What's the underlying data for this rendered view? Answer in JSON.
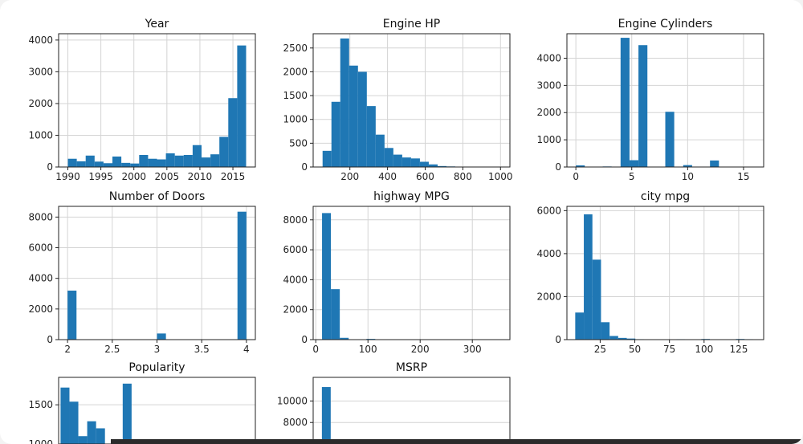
{
  "chart_data": [
    {
      "type": "bar",
      "title": "Year",
      "xlim": [
        1988.6,
        2018.4
      ],
      "ylim": [
        0,
        4200
      ],
      "xticks": [
        1990,
        1995,
        2000,
        2005,
        2010,
        2015
      ],
      "yticks": [
        0,
        1000,
        2000,
        3000,
        4000
      ],
      "bins": [
        [
          1990,
          1991.35,
          260
        ],
        [
          1991.35,
          1992.7,
          180
        ],
        [
          1992.7,
          1994.05,
          360
        ],
        [
          1994.05,
          1995.4,
          170
        ],
        [
          1995.4,
          1996.75,
          120
        ],
        [
          1996.75,
          1998.1,
          330
        ],
        [
          1998.1,
          1999.45,
          130
        ],
        [
          1999.45,
          2000.8,
          110
        ],
        [
          2000.8,
          2002.15,
          380
        ],
        [
          2002.15,
          2003.5,
          260
        ],
        [
          2003.5,
          2004.85,
          240
        ],
        [
          2004.85,
          2006.2,
          430
        ],
        [
          2006.2,
          2007.55,
          360
        ],
        [
          2007.55,
          2008.9,
          380
        ],
        [
          2008.9,
          2010.25,
          690
        ],
        [
          2010.25,
          2011.6,
          300
        ],
        [
          2011.6,
          2012.95,
          400
        ],
        [
          2012.95,
          2014.3,
          950
        ],
        [
          2014.3,
          2015.65,
          2170
        ],
        [
          2015.65,
          2017,
          3830
        ]
      ]
    },
    {
      "type": "bar",
      "title": "Engine HP",
      "xlim": [
        5,
        1050
      ],
      "ylim": [
        0,
        2800
      ],
      "xticks": [
        200,
        400,
        600,
        800,
        1000
      ],
      "yticks": [
        0,
        500,
        1000,
        1500,
        2000,
        2500
      ],
      "bins": [
        [
          55,
          102,
          340
        ],
        [
          102,
          149,
          1370
        ],
        [
          149,
          196,
          2700
        ],
        [
          196,
          243,
          2130
        ],
        [
          243,
          290,
          2000
        ],
        [
          290,
          337,
          1280
        ],
        [
          337,
          384,
          680
        ],
        [
          384,
          431,
          400
        ],
        [
          431,
          478,
          260
        ],
        [
          478,
          525,
          200
        ],
        [
          525,
          572,
          180
        ],
        [
          572,
          619,
          110
        ],
        [
          619,
          666,
          55
        ],
        [
          666,
          713,
          20
        ],
        [
          713,
          760,
          12
        ],
        [
          760,
          807,
          8
        ],
        [
          807,
          854,
          5
        ],
        [
          854,
          901,
          4
        ],
        [
          901,
          948,
          3
        ],
        [
          948,
          1001,
          2
        ]
      ]
    },
    {
      "type": "bar",
      "title": "Engine Cylinders",
      "xlim": [
        -0.8,
        16.8
      ],
      "ylim": [
        0,
        4900
      ],
      "xticks": [
        0,
        5,
        10,
        15
      ],
      "yticks": [
        0,
        1000,
        2000,
        3000,
        4000
      ],
      "bins": [
        [
          0,
          0.8,
          60
        ],
        [
          2.4,
          3.2,
          20
        ],
        [
          4,
          4.8,
          4750
        ],
        [
          4.8,
          5.6,
          250
        ],
        [
          5.6,
          6.4,
          4480
        ],
        [
          8,
          8.8,
          2030
        ],
        [
          9.6,
          10.4,
          70
        ],
        [
          12,
          12.8,
          240
        ],
        [
          15.2,
          16,
          5
        ]
      ]
    },
    {
      "type": "bar",
      "title": "Number of Doors",
      "xlim": [
        1.9,
        4.1
      ],
      "ylim": [
        0,
        8700
      ],
      "xticks": [
        2.0,
        2.5,
        3.0,
        3.5,
        4.0
      ],
      "yticks": [
        0,
        2000,
        4000,
        6000,
        8000
      ],
      "bins": [
        [
          2,
          2.1,
          3200
        ],
        [
          3,
          3.1,
          400
        ],
        [
          3.9,
          4,
          8350
        ]
      ]
    },
    {
      "type": "bar",
      "title": "highway MPG",
      "xlim": [
        -5,
        372
      ],
      "ylim": [
        0,
        8900
      ],
      "xticks": [
        0,
        100,
        200,
        300
      ],
      "yticks": [
        0,
        2000,
        4000,
        6000,
        8000
      ],
      "bins": [
        [
          12,
          29,
          8450
        ],
        [
          29,
          46,
          3370
        ],
        [
          46,
          63,
          120
        ],
        [
          63,
          80,
          15
        ],
        [
          80,
          97,
          10
        ],
        [
          97,
          114,
          50
        ],
        [
          114,
          131,
          8
        ],
        [
          131,
          148,
          5
        ],
        [
          332,
          354,
          3
        ]
      ]
    },
    {
      "type": "bar",
      "title": "city mpg",
      "xlim": [
        1,
        143
      ],
      "ylim": [
        0,
        6200
      ],
      "xticks": [
        25,
        50,
        75,
        100,
        125
      ],
      "yticks": [
        0,
        2000,
        4000,
        6000
      ],
      "bins": [
        [
          7,
          13.2,
          1260
        ],
        [
          13.2,
          19.4,
          5830
        ],
        [
          19.4,
          25.6,
          3720
        ],
        [
          25.6,
          31.8,
          810
        ],
        [
          31.8,
          38,
          170
        ],
        [
          38,
          44.2,
          80
        ],
        [
          44.2,
          50.4,
          50
        ],
        [
          50.4,
          56.6,
          20
        ],
        [
          56.6,
          62.8,
          10
        ],
        [
          80,
          86.2,
          20
        ],
        [
          98,
          104.2,
          30
        ],
        [
          123,
          129.2,
          30
        ],
        [
          129.2,
          135.4,
          20
        ]
      ]
    },
    {
      "type": "bar",
      "title": "Popularity",
      "xlim": [
        -50,
        6000
      ],
      "ylim": [
        1000,
        1850
      ],
      "xticks": [],
      "yticks": [
        1500
      ],
      "tick_labels": {
        "1000": "1000"
      },
      "bins": [
        [
          10,
          283,
          1720
        ],
        [
          283,
          556,
          1540
        ],
        [
          556,
          829,
          1100
        ],
        [
          829,
          1102,
          1290
        ],
        [
          1102,
          1375,
          1200
        ],
        [
          1375,
          1648,
          0
        ],
        [
          1648,
          1921,
          0
        ],
        [
          1921,
          2194,
          1770
        ]
      ]
    },
    {
      "type": "bar",
      "title": "MSRP",
      "xlim": [
        -100000,
        2200000
      ],
      "ylim": [
        6000,
        12200
      ],
      "xticks": [],
      "yticks": [
        8000,
        10000
      ],
      "bins": [
        [
          2000,
          105000,
          11300
        ]
      ]
    }
  ]
}
